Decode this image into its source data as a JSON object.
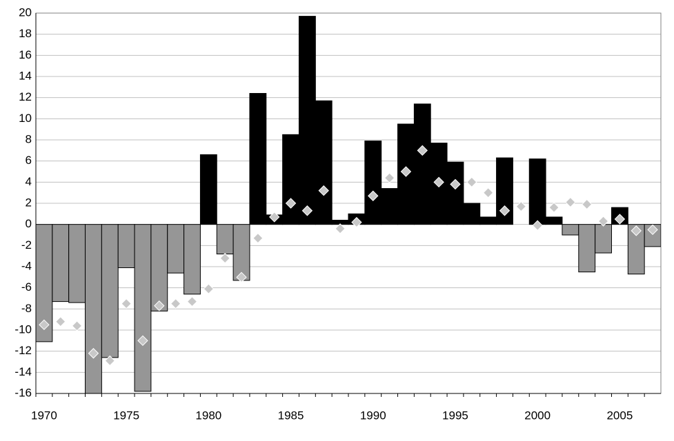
{
  "chart_data": {
    "type": "bar",
    "categories": [
      "1970",
      null,
      null,
      null,
      null,
      "1975",
      null,
      null,
      null,
      null,
      "1980",
      null,
      null,
      null,
      null,
      "1985",
      null,
      null,
      null,
      null,
      "1990",
      null,
      null,
      null,
      null,
      "1995",
      null,
      null,
      null,
      null,
      "2000",
      null,
      null,
      null,
      null,
      "2005",
      null,
      null
    ],
    "series": [
      {
        "type": "bar",
        "color_positive": "#000000",
        "color_negative": "#969696",
        "values": [
          -11.1,
          -7.3,
          -7.4,
          -16,
          -12.6,
          -4.1,
          -15.8,
          -8.2,
          -4.6,
          -6.6,
          6.6,
          -2.8,
          -5.3,
          12.4,
          0.9,
          8.5,
          19.7,
          11.7,
          0.4,
          1.0,
          7.9,
          3.4,
          9.5,
          11.4,
          7.7,
          5.9,
          2.0,
          0.7,
          6.3,
          0,
          6.2,
          0.7,
          -1.0,
          -4.5,
          -2.7,
          1.6,
          -4.7,
          -2.1
        ]
      },
      {
        "type": "scatter",
        "color": "#c8c8c8",
        "values": [
          -9.5,
          -9.2,
          -9.6,
          -12.2,
          -12.9,
          -7.5,
          -11.0,
          -7.7,
          -7.5,
          -7.3,
          -6.1,
          -3.2,
          -5.0,
          -1.3,
          0.7,
          2.0,
          1.3,
          3.2,
          -0.4,
          0.2,
          2.7,
          4.4,
          5.0,
          7.0,
          4.0,
          3.8,
          4.0,
          3.0,
          1.3,
          1.7,
          -0.1,
          1.6,
          2.1,
          1.9,
          0.3,
          0.5,
          -0.6,
          -0.5
        ]
      }
    ],
    "ylim": [
      -16,
      20
    ],
    "yticks": [
      -16,
      -14,
      -12,
      -10,
      -8,
      -6,
      -4,
      -2,
      0,
      2,
      4,
      6,
      8,
      10,
      12,
      14,
      16,
      18,
      20
    ],
    "grid": true
  }
}
